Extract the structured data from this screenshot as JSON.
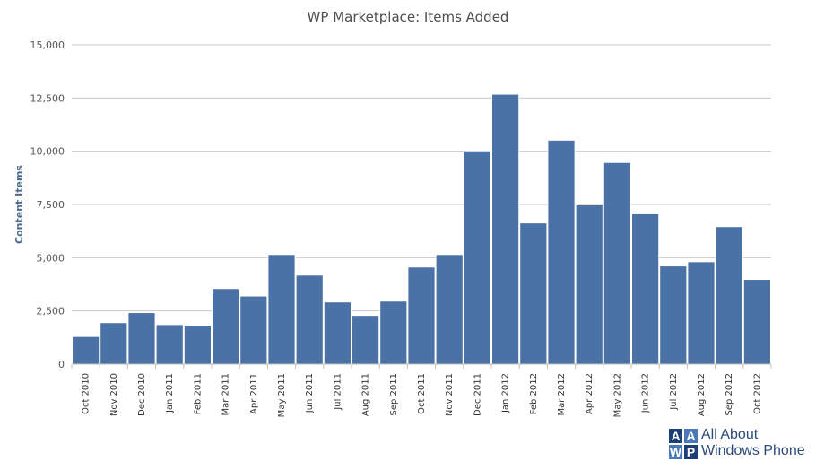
{
  "chart_data": {
    "type": "bar",
    "title": "WP Marketplace: Items Added",
    "xlabel": "",
    "ylabel": "Content Items",
    "ylim": [
      0,
      15000
    ],
    "yticks": [
      0,
      2500,
      5000,
      7500,
      10000,
      12500,
      15000
    ],
    "ytick_labels": [
      "0",
      "2,500",
      "5,000",
      "7,500",
      "10,000",
      "12,500",
      "15,000"
    ],
    "grid": true,
    "legend": "none",
    "bar_color": "#4a72a6",
    "categories": [
      "Oct 2010",
      "Nov 2010",
      "Dec 2010",
      "Jan 2011",
      "Feb 2011",
      "Mar 2011",
      "Apr 2011",
      "May 2011",
      "Jun 2011",
      "Jul 2011",
      "Aug 2011",
      "Sep 2011",
      "Oct 2011",
      "Nov 2011",
      "Dec 2011",
      "Jan 2012",
      "Feb 2012",
      "Mar 2012",
      "Apr 2012",
      "May 2012",
      "Jun 2012",
      "Jul 2012",
      "Aug 2012",
      "Sep 2012",
      "Oct 2012"
    ],
    "values": [
      1300,
      1950,
      2420,
      1860,
      1820,
      3550,
      3200,
      5150,
      4180,
      2920,
      2290,
      2960,
      4560,
      5150,
      10020,
      12680,
      6630,
      10520,
      7480,
      9470,
      7060,
      4610,
      4810,
      6460,
      3980
    ]
  },
  "logo": {
    "cells": [
      "A",
      "A",
      "W",
      "P"
    ],
    "line1": "All About",
    "line2": "Windows Phone",
    "color_dark": "#1c3f78",
    "color_light": "#4a78b8"
  }
}
